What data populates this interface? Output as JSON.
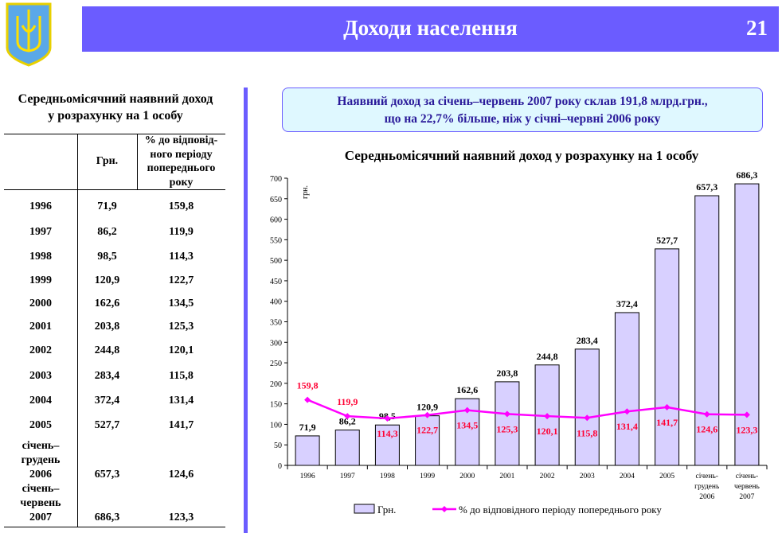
{
  "header": {
    "title": "Доходи населення",
    "page_number": "21",
    "logo": "Ukraine coat of arms (tryzub)",
    "accent_color": "#6b5cff"
  },
  "table": {
    "title_line1": "Середньомісячний наявний доход",
    "title_line2": "у розрахунку на 1 особу",
    "col_uah": "Грн.",
    "col_pct": [
      "% до відповід-",
      "ного періоду",
      "попереднього",
      "року"
    ],
    "rows": [
      {
        "label": [
          "1996"
        ],
        "uah": "71,9",
        "pct": "159,8"
      },
      {
        "label": [
          "1997"
        ],
        "uah": "86,2",
        "pct": "119,9"
      },
      {
        "label": [
          "1998"
        ],
        "uah": "98,5",
        "pct": "114,3"
      },
      {
        "label": [
          "1999"
        ],
        "uah": "120,9",
        "pct": "122,7"
      },
      {
        "label": [
          "2000"
        ],
        "uah": "162,6",
        "pct": "134,5"
      },
      {
        "label": [
          "2001"
        ],
        "uah": "203,8",
        "pct": "125,3"
      },
      {
        "label": [
          "2002"
        ],
        "uah": "244,8",
        "pct": "120,1"
      },
      {
        "label": [
          "2003"
        ],
        "uah": "283,4",
        "pct": "115,8"
      },
      {
        "label": [
          "2004"
        ],
        "uah": "372,4",
        "pct": "131,4"
      },
      {
        "label": [
          "2005"
        ],
        "uah": "527,7",
        "pct": "141,7"
      },
      {
        "label": [
          "січень–",
          "грудень",
          "2006"
        ],
        "uah": "657,3",
        "pct": "124,6"
      },
      {
        "label": [
          "січень–",
          "червень",
          "2007"
        ],
        "uah": "686,3",
        "pct": "123,3"
      }
    ]
  },
  "note": {
    "line1": "Наявний доход за січень–червень 2007 року склав 191,8 млрд.грн.,",
    "line2": "що на 22,7% більше, ніж у січні–червні 2006 року"
  },
  "chart_data": {
    "type": "bar",
    "title": "Середньомісячний наявний доход у розрахунку на 1 особу",
    "ylabel": "грн.",
    "ylim": [
      0,
      700
    ],
    "yticks": [
      0,
      50,
      100,
      150,
      200,
      250,
      300,
      350,
      400,
      450,
      500,
      550,
      600,
      650,
      700
    ],
    "categories": [
      [
        "1996"
      ],
      [
        "1997"
      ],
      [
        "1998"
      ],
      [
        "1999"
      ],
      [
        "2000"
      ],
      [
        "2001"
      ],
      [
        "2002"
      ],
      [
        "2003"
      ],
      [
        "2004"
      ],
      [
        "2005"
      ],
      [
        "січень-",
        "грудень",
        "2006"
      ],
      [
        "січень-",
        "червень",
        "2007"
      ]
    ],
    "series": [
      {
        "name": "Грн.",
        "type": "bar",
        "color": "#d8d0ff",
        "values": [
          71.9,
          86.2,
          98.5,
          120.9,
          162.6,
          203.8,
          244.8,
          283.4,
          372.4,
          527.7,
          657.3,
          686.3
        ],
        "labels": [
          "71,9",
          "86,2",
          "98,5",
          "120,9",
          "162,6",
          "203,8",
          "244,8",
          "283,4",
          "372,4",
          "527,7",
          "657,3",
          "686,3"
        ]
      },
      {
        "name": "% до відповідного періоду попереднього року",
        "type": "line",
        "color": "#ff00ff",
        "label_color": "#ff0033",
        "values": [
          159.8,
          119.9,
          114.3,
          122.7,
          134.5,
          125.3,
          120.1,
          115.8,
          131.4,
          141.7,
          124.6,
          123.3
        ],
        "labels": [
          "159,8",
          "119,9",
          "114,3",
          "122,7",
          "134,5",
          "125,3",
          "120,1",
          "115,8",
          "131,4",
          "141,7",
          "124,6",
          "123,3"
        ]
      }
    ],
    "legend": "bottom",
    "grid": false
  }
}
